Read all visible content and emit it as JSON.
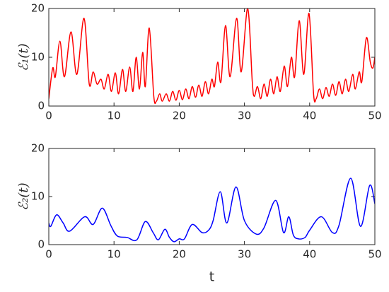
{
  "chart_data": [
    {
      "type": "line",
      "ylabel": "ℰ₁(t)",
      "color": "#ff0000",
      "xlim": [
        0,
        50
      ],
      "xticks": [
        0,
        10,
        20,
        30,
        40,
        50
      ],
      "ylim": [
        0,
        20
      ],
      "yticks": [
        0,
        10,
        20
      ],
      "x": [
        0,
        0.6,
        1.0,
        1.7,
        2.4,
        3.4,
        4.3,
        5.4,
        6.2,
        6.8,
        7.4,
        8.0,
        8.5,
        9.1,
        9.6,
        10.2,
        10.7,
        11.3,
        11.8,
        12.4,
        12.9,
        13.4,
        13.9,
        14.4,
        14.8,
        15.4,
        16.1,
        16.5,
        17,
        17.4,
        18,
        18.5,
        19,
        19.5,
        20,
        20.5,
        21,
        21.5,
        22,
        22.5,
        23,
        23.5,
        24,
        24.5,
        25,
        25.4,
        25.9,
        26.4,
        27.1,
        27.8,
        28.8,
        29.5,
        30.5,
        31.2,
        31.5,
        32,
        32.5,
        33,
        33.5,
        34,
        34.5,
        35,
        35.5,
        36.1,
        36.6,
        37.2,
        37.7,
        38.4,
        39.1,
        39.9,
        40.6,
        41,
        41.5,
        42,
        42.5,
        43,
        43.5,
        44,
        44.5,
        45,
        45.5,
        46,
        46.6,
        47,
        47.6,
        48,
        48.7,
        49.3,
        49.7,
        50
      ],
      "values": [
        1.5,
        7.8,
        6,
        13.3,
        6,
        15.2,
        6.5,
        18,
        4.5,
        7,
        4.5,
        5.5,
        3.5,
        6.5,
        3,
        6.8,
        2.5,
        7.5,
        3,
        8,
        3,
        10,
        3.5,
        11,
        4,
        16,
        2,
        1,
        2.5,
        1,
        2.5,
        1,
        3,
        1.2,
        3.2,
        1.3,
        3.5,
        1.5,
        4,
        1.8,
        4.3,
        2,
        5,
        2.5,
        5.5,
        4,
        9,
        5,
        16.5,
        6,
        18,
        7,
        20,
        5,
        2,
        4,
        1.5,
        4.5,
        2,
        5.5,
        2.5,
        6,
        3,
        8.2,
        4,
        10,
        6,
        17.5,
        6.5,
        19,
        2.5,
        1.5,
        3.5,
        1.5,
        3.8,
        2,
        4.5,
        2.2,
        5,
        2.5,
        5.5,
        3,
        6.5,
        3.5,
        7,
        5,
        14,
        9,
        7.8,
        10
      ]
    },
    {
      "type": "line",
      "ylabel": "ℰ₂(t)",
      "xlabel": "t",
      "color": "#0000ff",
      "xlim": [
        0,
        50
      ],
      "xticks": [
        0,
        10,
        20,
        30,
        40,
        50
      ],
      "ylim": [
        0,
        20
      ],
      "yticks": [
        0,
        10,
        20
      ],
      "x": [
        0,
        0.3,
        1.2,
        2.2,
        3.2,
        5.5,
        6.8,
        8.2,
        9.5,
        10.5,
        12,
        13.5,
        14.8,
        16,
        16.8,
        17.8,
        18.5,
        19.2,
        20,
        20.8,
        22,
        23.5,
        24.5,
        25.2,
        26.3,
        27.3,
        28.7,
        30,
        31.8,
        33,
        34.8,
        36,
        36.8,
        37.5,
        38.3,
        39.3,
        40,
        41.8,
        43.5,
        44.5,
        46.3,
        47.8,
        49.2,
        50
      ],
      "values": [
        4.5,
        3.8,
        6.2,
        4.5,
        2.8,
        5.8,
        4.2,
        7.6,
        4,
        1.8,
        1.5,
        1,
        4.8,
        2.5,
        1,
        3.2,
        1.5,
        0.6,
        1.2,
        1.2,
        4.2,
        2.5,
        3,
        5,
        11,
        4.5,
        12,
        5,
        2.2,
        3.5,
        9.2,
        2.5,
        5.8,
        2,
        1.2,
        1.5,
        3,
        5.8,
        2.5,
        4,
        13.8,
        3.8,
        12.3,
        8.5
      ]
    }
  ]
}
